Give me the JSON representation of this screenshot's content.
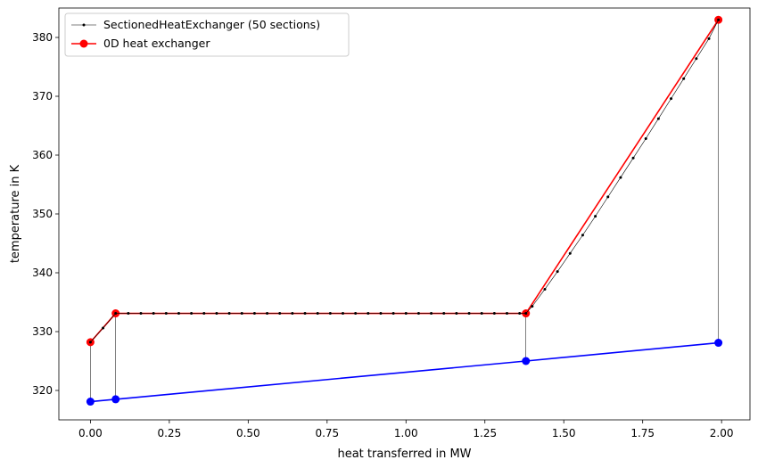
{
  "chart_data": {
    "type": "line",
    "title": "",
    "xlabel": "heat transferred in MW",
    "ylabel": "temperature in K",
    "xlim": [
      -0.1,
      2.09
    ],
    "ylim": [
      315.0,
      385.0
    ],
    "xticks": [
      "0.00",
      "0.25",
      "0.50",
      "0.75",
      "1.00",
      "1.25",
      "1.50",
      "1.75",
      "2.00"
    ],
    "yticks": [
      "320",
      "330",
      "340",
      "350",
      "360",
      "370",
      "380"
    ],
    "grid": false,
    "legend_position": "top-left",
    "legend": [
      {
        "label": "SectionedHeatExchanger (50 sections)",
        "color": "#000000"
      },
      {
        "label": "0D heat exchanger",
        "color": "#ff0000"
      }
    ],
    "series": [
      {
        "name": "SectionedHeatExchanger (50 sections)",
        "color": "#000000",
        "x": [
          0.0,
          0.04,
          0.08,
          0.12,
          0.16,
          0.2,
          0.24,
          0.28,
          0.32,
          0.36,
          0.4,
          0.44,
          0.48,
          0.52,
          0.56,
          0.6,
          0.64,
          0.68,
          0.72,
          0.76,
          0.8,
          0.84,
          0.88,
          0.92,
          0.96,
          1.0,
          1.04,
          1.08,
          1.12,
          1.16,
          1.2,
          1.24,
          1.28,
          1.32,
          1.36,
          1.38,
          1.4,
          1.44,
          1.48,
          1.52,
          1.56,
          1.6,
          1.64,
          1.68,
          1.72,
          1.76,
          1.8,
          1.84,
          1.88,
          1.92,
          1.96,
          1.99
        ],
        "y": [
          328.2,
          330.6,
          333.1,
          333.1,
          333.1,
          333.1,
          333.1,
          333.1,
          333.1,
          333.1,
          333.1,
          333.1,
          333.1,
          333.1,
          333.1,
          333.1,
          333.1,
          333.1,
          333.1,
          333.1,
          333.1,
          333.1,
          333.1,
          333.1,
          333.1,
          333.1,
          333.1,
          333.1,
          333.1,
          333.1,
          333.1,
          333.1,
          333.1,
          333.1,
          333.1,
          333.1,
          334.3,
          337.2,
          340.2,
          343.3,
          346.4,
          349.6,
          352.9,
          356.2,
          359.5,
          362.8,
          366.2,
          369.6,
          373.0,
          376.4,
          379.8,
          383.0
        ]
      },
      {
        "name": "0D heat exchanger",
        "color": "#ff0000",
        "x": [
          0.0,
          0.08,
          1.38,
          1.99
        ],
        "y": [
          328.2,
          333.1,
          333.1,
          383.0
        ]
      },
      {
        "color": "#0000ff",
        "x": [
          0.0,
          0.08,
          1.38,
          1.99
        ],
        "y": [
          318.1,
          318.5,
          325.0,
          328.1
        ]
      }
    ],
    "connectors": [
      {
        "x": 0.0,
        "y1": 318.1,
        "y2": 328.2
      },
      {
        "x": 0.08,
        "y1": 318.5,
        "y2": 333.1
      },
      {
        "x": 1.38,
        "y1": 325.0,
        "y2": 333.1
      },
      {
        "x": 1.99,
        "y1": 328.1,
        "y2": 383.0
      }
    ]
  }
}
